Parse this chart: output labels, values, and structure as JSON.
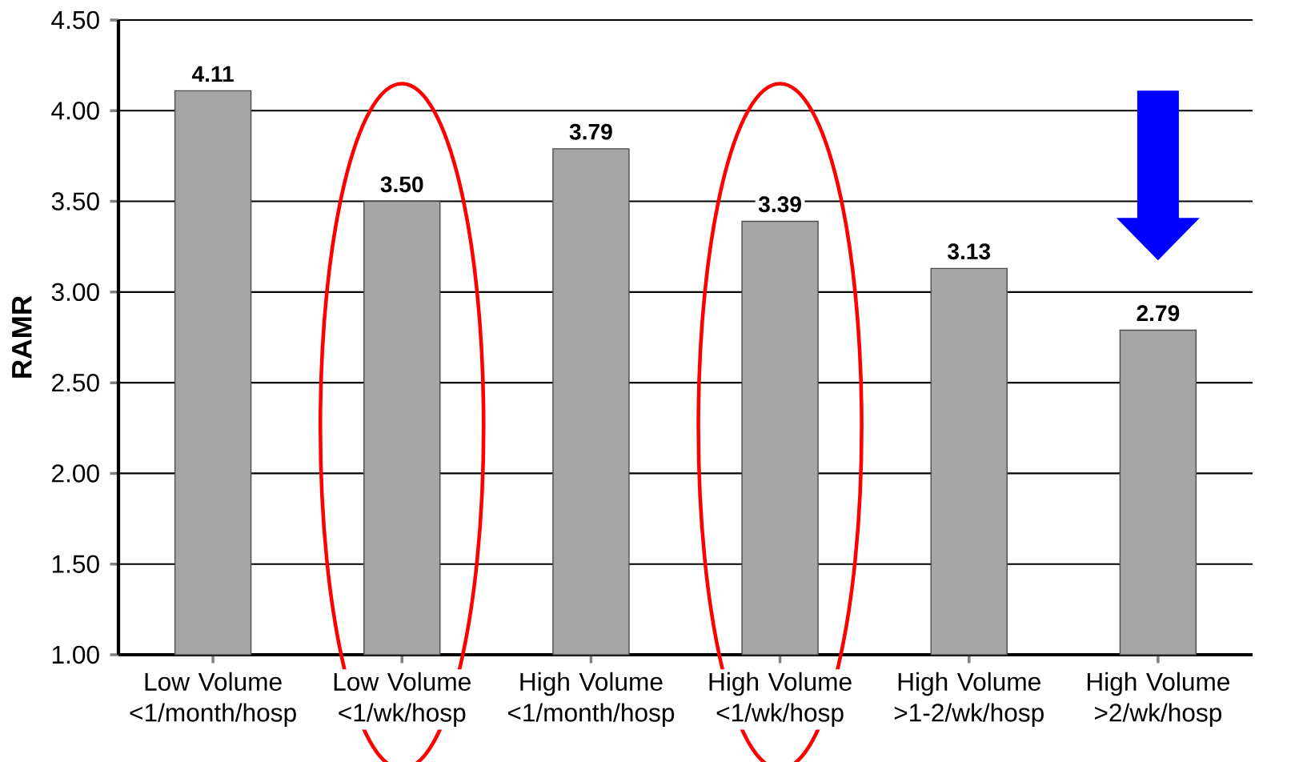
{
  "chart_data": {
    "type": "bar",
    "ylabel": "RAMR",
    "categories": [
      "Low Volume <1/month/hosp",
      "Low Volume <1/wk/hosp",
      "High Volume <1/month/hosp",
      "High Volume <1/wk/hosp",
      "High Volume >1-2/wk/hosp",
      "High Volume >2/wk/hosp"
    ],
    "values": [
      4.11,
      3.5,
      3.79,
      3.39,
      3.13,
      2.79
    ],
    "value_labels": [
      "4.11",
      "3.50",
      "3.79",
      "3.39",
      "3.13",
      "2.79"
    ],
    "color": "#a6a6a6",
    "ylim": [
      1,
      4.5
    ],
    "yticks": [
      {
        "value": 1,
        "label": "1.00"
      },
      {
        "value": 1.5,
        "label": "1.50"
      },
      {
        "value": 2,
        "label": "2.00"
      },
      {
        "value": 2.5,
        "label": "2.50"
      },
      {
        "value": 3,
        "label": "3.00"
      },
      {
        "value": 3.5,
        "label": "3.50"
      },
      {
        "value": 4,
        "label": "4.00"
      },
      {
        "value": 4.5,
        "label": "4.50"
      }
    ],
    "grid": "y"
  }
}
